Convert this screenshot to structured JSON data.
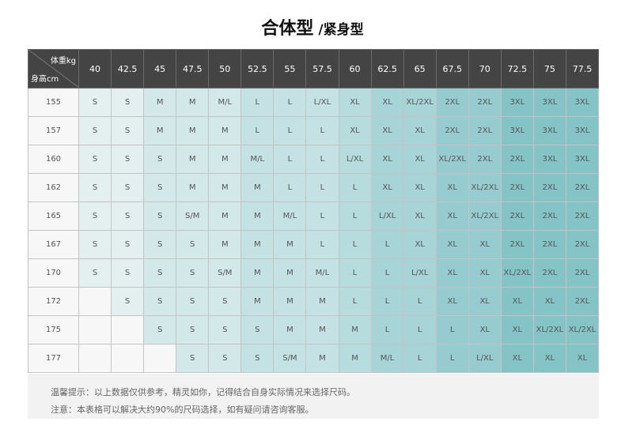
{
  "title": {
    "main": "合体型",
    "sub": "/紧身型"
  },
  "table": {
    "corner_weight": "体重kg",
    "corner_height": "身高cm",
    "weights": [
      "40",
      "42.5",
      "45",
      "47.5",
      "50",
      "52.5",
      "55",
      "57.5",
      "60",
      "62.5",
      "65",
      "67.5",
      "70",
      "72.5",
      "75",
      "77.5"
    ],
    "rows": [
      {
        "height": "155",
        "sizes": [
          "S",
          "S",
          "M",
          "M",
          "M/L",
          "L",
          "L",
          "L/XL",
          "XL",
          "XL",
          "XL/2XL",
          "2XL",
          "2XL",
          "3XL",
          "3XL",
          "3XL"
        ]
      },
      {
        "height": "157",
        "sizes": [
          "S",
          "S",
          "M",
          "M",
          "M",
          "L",
          "L",
          "L",
          "XL",
          "XL",
          "XL",
          "2XL",
          "2XL",
          "3XL",
          "3XL",
          "3XL"
        ]
      },
      {
        "height": "160",
        "sizes": [
          "S",
          "S",
          "S",
          "M",
          "M",
          "M/L",
          "L",
          "L",
          "L/XL",
          "XL",
          "XL",
          "XL/2XL",
          "2XL",
          "2XL",
          "3XL",
          "3XL"
        ]
      },
      {
        "height": "162",
        "sizes": [
          "S",
          "S",
          "S",
          "M",
          "M",
          "M",
          "L",
          "L",
          "L",
          "XL",
          "XL",
          "XL",
          "XL/2XL",
          "2XL",
          "2XL",
          "2XL"
        ]
      },
      {
        "height": "165",
        "sizes": [
          "S",
          "S",
          "S",
          "S/M",
          "M",
          "M",
          "M/L",
          "L",
          "L",
          "L/XL",
          "XL",
          "XL",
          "XL/2XL",
          "2XL",
          "2XL",
          "2XL"
        ]
      },
      {
        "height": "167",
        "sizes": [
          "S",
          "S",
          "S",
          "S",
          "M",
          "M",
          "M",
          "L",
          "L",
          "L",
          "XL",
          "XL",
          "XL",
          "2XL",
          "2XL",
          "2XL"
        ]
      },
      {
        "height": "170",
        "sizes": [
          "S",
          "S",
          "S",
          "S",
          "S/M",
          "M",
          "M",
          "M/L",
          "L",
          "L",
          "L/XL",
          "XL",
          "XL",
          "XL/2XL",
          "2XL",
          "2XL"
        ]
      },
      {
        "height": "172",
        "sizes": [
          "",
          "S",
          "S",
          "S",
          "S",
          "M",
          "M",
          "M",
          "L",
          "L",
          "L",
          "XL",
          "XL",
          "XL",
          "XL",
          "2XL"
        ]
      },
      {
        "height": "175",
        "sizes": [
          "",
          "",
          "S",
          "S",
          "S",
          "S",
          "M",
          "M",
          "M",
          "L",
          "L",
          "L",
          "XL",
          "XL",
          "XL/2XL",
          "XL/2XL"
        ]
      },
      {
        "height": "177",
        "sizes": [
          "",
          "",
          "",
          "S",
          "S",
          "S",
          "S/M",
          "M",
          "M",
          "M/L",
          "L",
          "L",
          "L/XL",
          "XL",
          "XL",
          "XL"
        ]
      }
    ]
  },
  "colors": {
    "header": "#444444",
    "empty": "#f7f7f7",
    "levels": [
      "#e4f0f0",
      "#d3e8e9",
      "#c4e2e3",
      "#b6dcdd",
      "#a7d4d6",
      "#96cccf",
      "#84c4c7"
    ]
  },
  "footer": {
    "line1": "温馨提示：以上数据仅供参考，精灵如你，记得结合自身实际情况来选择尺码。",
    "line2": "注意：本表格可以解决大约90%的尺码选择，如有疑问请咨询客服。"
  }
}
